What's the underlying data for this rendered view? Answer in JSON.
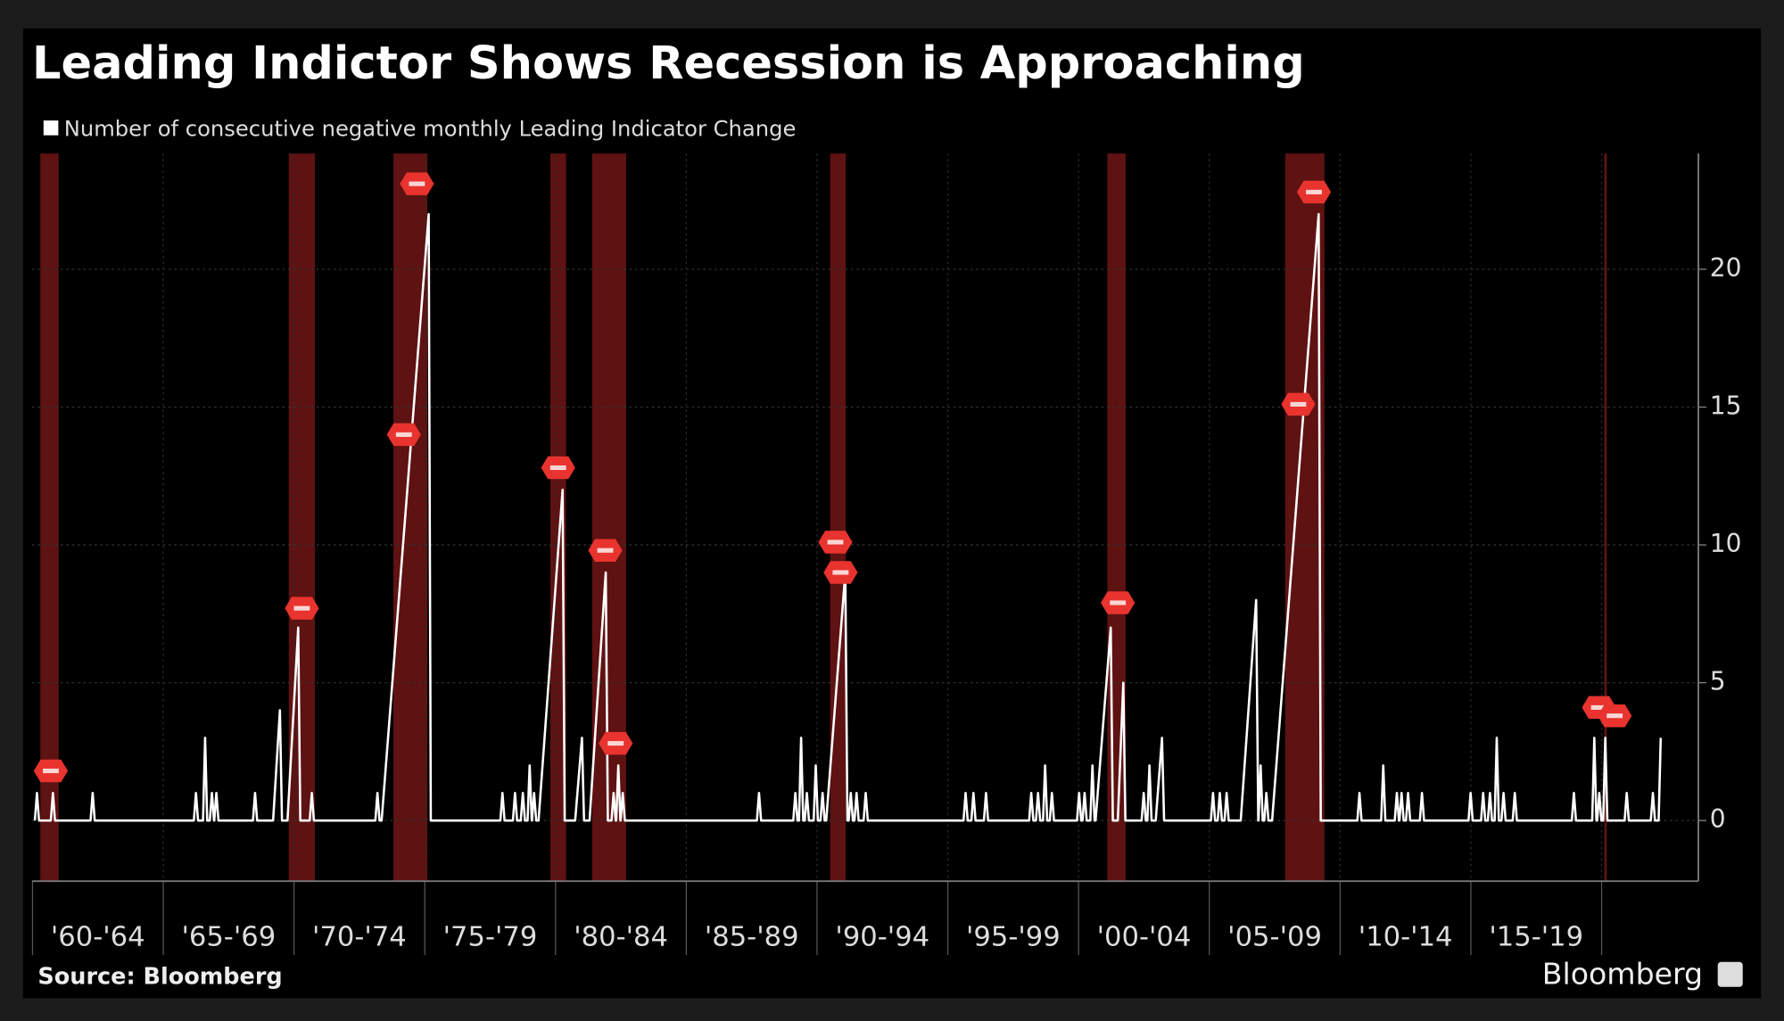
{
  "chart_data": {
    "type": "line",
    "title": "Leading Indictor Shows Recession is Approaching",
    "source": "Source: Bloomberg",
    "brand": "Bloomberg",
    "categories": [
      "'60-'64",
      "'65-'69",
      "'70-'74",
      "'75-'79",
      "'80-'84",
      "'85-'89",
      "'90-'94",
      "'95-'99",
      "'00-'04",
      "'05-'09",
      "'10-'14",
      "'15-'19"
    ],
    "xlim": [
      1959.9,
      2023.7
    ],
    "xticks": [
      1960,
      1965,
      1970,
      1975,
      1980,
      1985,
      1990,
      1995,
      2000,
      2005,
      2010,
      2015,
      2020
    ],
    "ylim": [
      -2.2,
      24.2
    ],
    "yticks": [
      0,
      5,
      10,
      15,
      20
    ],
    "grid": true,
    "recession_color": "#6e1515",
    "recessions": [
      [
        1960.3,
        1961.0
      ],
      [
        1969.8,
        1970.8
      ],
      [
        1973.8,
        1975.1
      ],
      [
        1979.8,
        1980.4
      ],
      [
        1981.4,
        1982.7
      ],
      [
        1990.5,
        1991.1
      ],
      [
        2001.1,
        2001.8
      ],
      [
        2007.9,
        2009.4
      ],
      [
        2020.1,
        2020.2
      ]
    ],
    "markers": {
      "color": "#e8332e",
      "x": [
        1960.7,
        1970.3,
        1974.7,
        1974.2,
        1980.1,
        1981.9,
        1982.3,
        1990.7,
        1990.9,
        2001.5,
        2009.0,
        2008.4,
        2019.9,
        2020.5
      ],
      "y": [
        1.8,
        7.7,
        23.1,
        14,
        12.8,
        9.8,
        2.8,
        10.1,
        9,
        7.9,
        22.8,
        15.1,
        4.1,
        3.8
      ]
    },
    "series": [
      {
        "name": "Number of consecutive negative monthly Leading Indicator Change",
        "color": "#ffffff",
        "x": [
          1960.09,
          1960.17,
          1960.25,
          1960.7,
          1960.78,
          1960.86,
          1962.22,
          1962.3,
          1962.38,
          1966.17,
          1966.25,
          1966.33,
          1966.52,
          1966.6,
          1966.68,
          1966.78,
          1966.86,
          1966.94,
          1966.95,
          1967.03,
          1967.11,
          1968.43,
          1968.51,
          1968.59,
          1969.2,
          1969.46,
          1969.54,
          1969.75,
          1970.16,
          1970.24,
          1970.6,
          1970.68,
          1970.76,
          1973.11,
          1973.19,
          1973.27,
          1973.35,
          1975.15,
          1975.23,
          1977.89,
          1977.97,
          1978.05,
          1978.37,
          1978.45,
          1978.53,
          1978.67,
          1978.75,
          1978.83,
          1978.93,
          1979.01,
          1979.09,
          1979.1,
          1979.18,
          1979.26,
          1979.35,
          1980.27,
          1980.35,
          1980.75,
          1981.01,
          1981.09,
          1981.3,
          1981.92,
          1982.0,
          1982.14,
          1982.22,
          1982.3,
          1982.32,
          1982.4,
          1982.48,
          1982.49,
          1982.57,
          1982.65,
          1987.7,
          1987.78,
          1987.86,
          1989.09,
          1989.17,
          1989.25,
          1989.31,
          1989.39,
          1989.47,
          1989.53,
          1989.61,
          1989.69,
          1989.87,
          1989.95,
          1990.03,
          1990.13,
          1990.21,
          1990.29,
          1990.35,
          1991.08,
          1991.16,
          1991.21,
          1991.29,
          1991.37,
          1991.43,
          1991.51,
          1991.59,
          1991.78,
          1991.86,
          1991.94,
          1995.6,
          1995.68,
          1995.76,
          1995.9,
          1995.98,
          1996.06,
          1996.38,
          1996.46,
          1996.54,
          1998.11,
          1998.19,
          1998.27,
          1998.37,
          1998.45,
          1998.53,
          1998.64,
          1998.72,
          1998.8,
          1998.9,
          1998.98,
          1999.06,
          1999.94,
          2000.02,
          2000.1,
          2000.15,
          2000.23,
          2000.31,
          2000.45,
          2000.53,
          2000.61,
          2000.65,
          2001.23,
          2001.31,
          2001.5,
          2001.71,
          2001.79,
          2002.41,
          2002.49,
          2002.57,
          2002.63,
          2002.71,
          2002.79,
          2002.95,
          2003.19,
          2003.27,
          2005.06,
          2005.14,
          2005.22,
          2005.32,
          2005.4,
          2005.48,
          2005.58,
          2005.66,
          2005.74,
          2006.2,
          2006.79,
          2006.87,
          2006.88,
          2006.96,
          2007.04,
          2007.1,
          2007.18,
          2007.26,
          2007.4,
          2009.18,
          2009.26,
          2010.66,
          2010.74,
          2010.82,
          2011.57,
          2011.65,
          2011.73,
          2012.09,
          2012.17,
          2012.25,
          2012.27,
          2012.35,
          2012.43,
          2012.52,
          2012.6,
          2012.68,
          2013.05,
          2013.13,
          2013.21,
          2014.91,
          2014.99,
          2015.07,
          2015.39,
          2015.47,
          2015.55,
          2015.65,
          2015.73,
          2015.81,
          2015.91,
          2015.99,
          2016.07,
          2016.17,
          2016.25,
          2016.33,
          2016.6,
          2016.68,
          2016.76,
          2018.86,
          2018.94,
          2019.02,
          2019.64,
          2019.72,
          2019.8,
          2019.83,
          2019.91,
          2019.99,
          2020.06,
          2020.14,
          2020.22,
          2020.88,
          2020.96,
          2021.04,
          2021.88,
          2021.96,
          2022.04,
          2022.18,
          2022.26
        ],
        "values": [
          0,
          1,
          0,
          0,
          1,
          0,
          0,
          1,
          0,
          0,
          1,
          0,
          0,
          3,
          0,
          0,
          1,
          0,
          0,
          1,
          0,
          0,
          1,
          0,
          0,
          4,
          0,
          0,
          7,
          0,
          0,
          1,
          0,
          0,
          1,
          0,
          0,
          22,
          0,
          0,
          1,
          0,
          0,
          1,
          0,
          0,
          1,
          0,
          0,
          2,
          0,
          0,
          1,
          0,
          0,
          12,
          0,
          0,
          3,
          0,
          0,
          9,
          0,
          0,
          1,
          0,
          0,
          2,
          0,
          0,
          1,
          0,
          0,
          1,
          0,
          0,
          1,
          0,
          0,
          3,
          0,
          0,
          1,
          0,
          0,
          2,
          0,
          0,
          1,
          0,
          0,
          9,
          0,
          0,
          1,
          0,
          0,
          1,
          0,
          0,
          1,
          0,
          0,
          1,
          0,
          0,
          1,
          0,
          0,
          1,
          0,
          0,
          1,
          0,
          0,
          1,
          0,
          0,
          2,
          0,
          0,
          1,
          0,
          0,
          1,
          0,
          0,
          1,
          0,
          0,
          2,
          0,
          0,
          7,
          0,
          0,
          5,
          0,
          0,
          1,
          0,
          0,
          2,
          0,
          0,
          3,
          0,
          0,
          1,
          0,
          0,
          1,
          0,
          0,
          1,
          0,
          0,
          8,
          0,
          0,
          2,
          0,
          0,
          1,
          0,
          0,
          22,
          0,
          0,
          1,
          0,
          0,
          2,
          0,
          0,
          1,
          0,
          0,
          1,
          0,
          0,
          1,
          0,
          0,
          1,
          0,
          0,
          1,
          0,
          0,
          1,
          0,
          0,
          1,
          0,
          0,
          3,
          0,
          0,
          1,
          0,
          0,
          1,
          0,
          0,
          1,
          0,
          0,
          3,
          0,
          0,
          1,
          0,
          0,
          3,
          0,
          0,
          1,
          0,
          0,
          1,
          0,
          0,
          3
        ]
      }
    ]
  }
}
